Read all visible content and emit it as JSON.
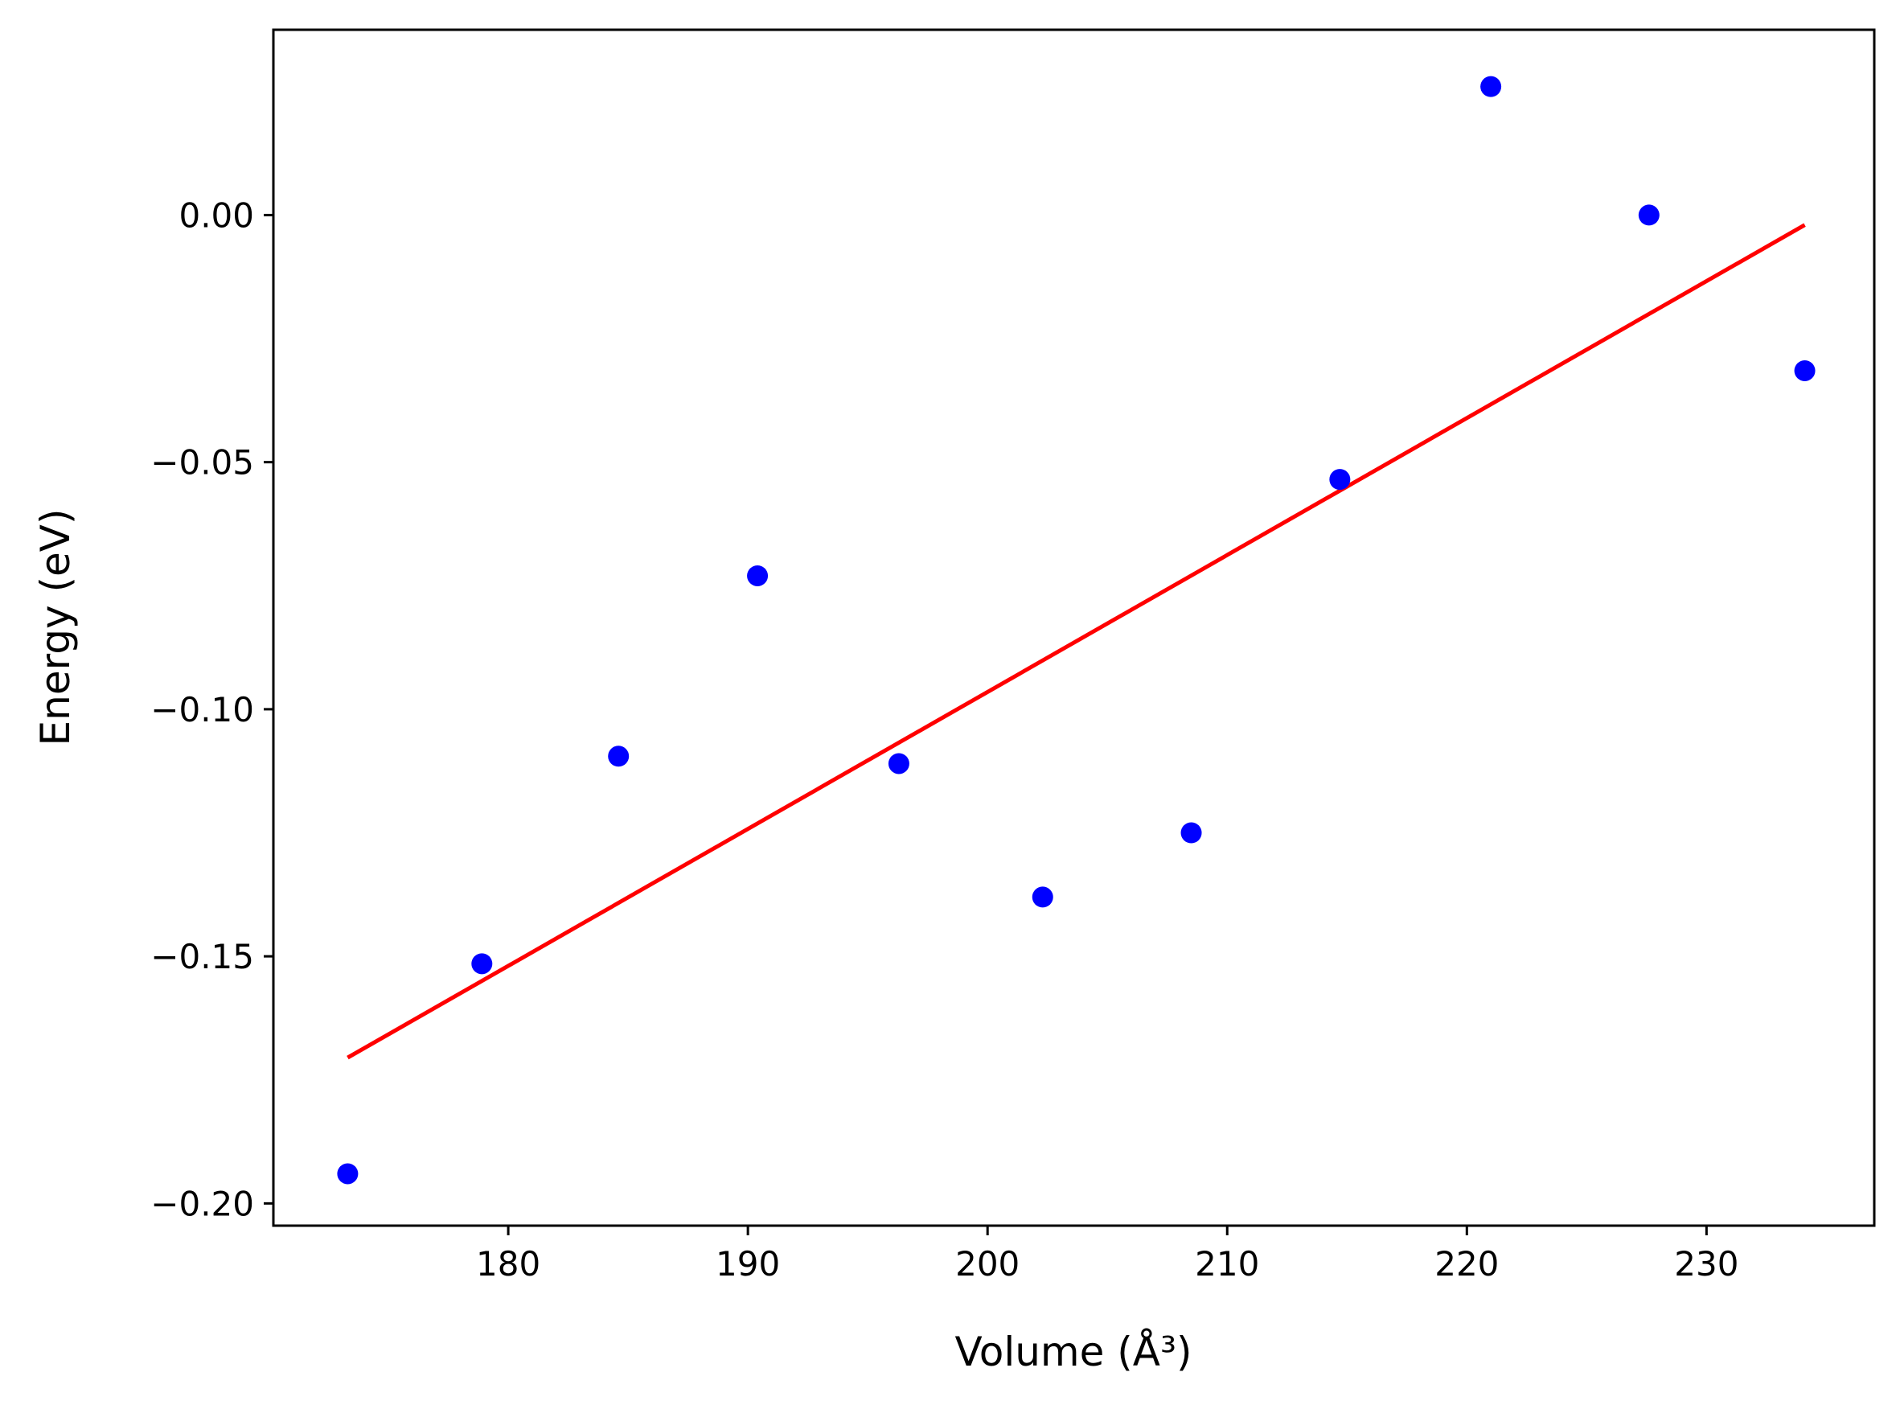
{
  "chart_data": {
    "type": "scatter",
    "xlabel": "Volume (Å³)",
    "ylabel": "Energy (eV)",
    "xlim": [
      170.2,
      237.0
    ],
    "ylim": [
      -0.2045,
      0.0375
    ],
    "xticks": [
      180,
      190,
      200,
      210,
      220,
      230
    ],
    "xtick_labels": [
      "180",
      "190",
      "200",
      "210",
      "220",
      "230"
    ],
    "yticks": [
      -0.2,
      -0.15,
      -0.1,
      -0.05,
      0.0
    ],
    "ytick_labels": [
      "−0.20",
      "−0.15",
      "−0.10",
      "−0.05",
      "0.00"
    ],
    "grid": false,
    "series": [
      {
        "kind": "scatter",
        "color": "#0000ff",
        "x": [
          173.3,
          178.9,
          184.6,
          190.4,
          196.3,
          202.3,
          208.5,
          214.7,
          221.0,
          227.6,
          234.1
        ],
        "y": [
          -0.194,
          -0.1515,
          -0.1095,
          -0.073,
          -0.111,
          -0.138,
          -0.125,
          -0.0535,
          0.026,
          0.0,
          -0.0315
        ]
      },
      {
        "kind": "line",
        "color": "#ff0000",
        "x": [
          173.3,
          234.1
        ],
        "y": [
          -0.1705,
          -0.002
        ]
      }
    ]
  }
}
